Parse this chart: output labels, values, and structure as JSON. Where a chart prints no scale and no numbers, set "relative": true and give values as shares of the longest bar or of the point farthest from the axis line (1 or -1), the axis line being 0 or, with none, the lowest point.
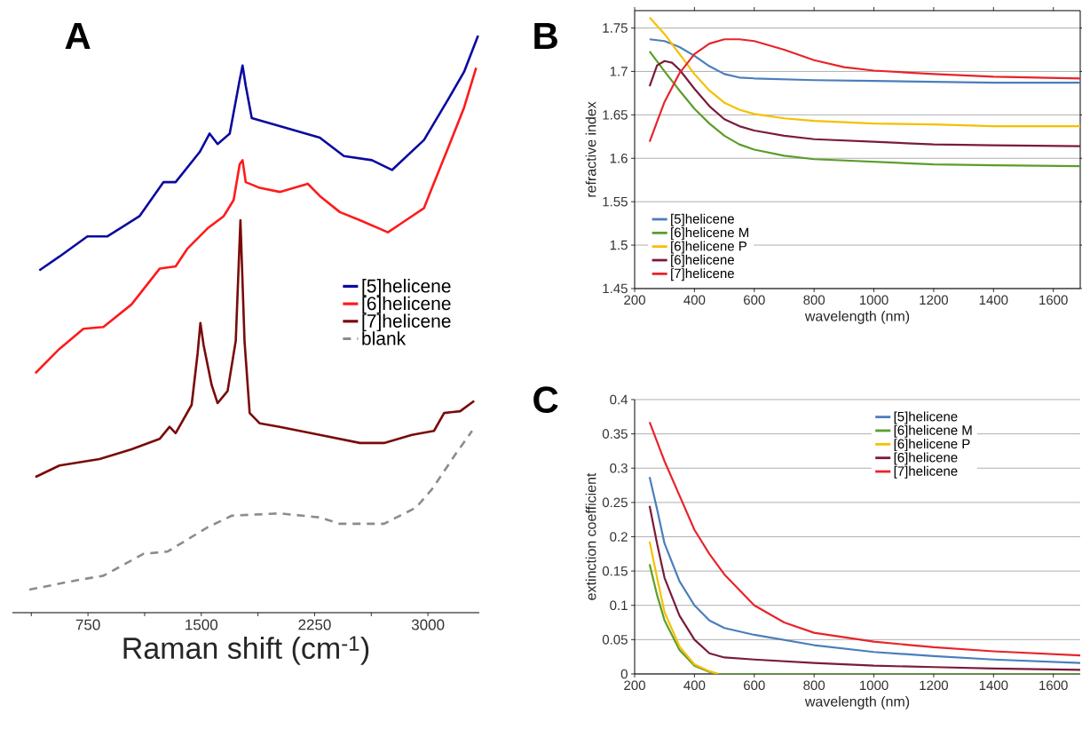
{
  "chart_data": [
    {
      "type": "line",
      "title": "A",
      "xlabel": "Raman shift (cm$^{-1}$)",
      "relative": true,
      "legend": "right",
      "xlim": [
        250,
        3340
      ],
      "xticks": [
        {
          "value": 375,
          "label": null
        },
        750,
        {
          "value": 1125,
          "label": null
        },
        1500,
        {
          "value": 1875,
          "label": null
        },
        2250,
        {
          "value": 2625,
          "label": null
        },
        3000
      ],
      "series": [
        {
          "name": "[5]helicene",
          "color": "#0a0aa0",
          "x": [
            428,
            561,
            746,
            879,
            1091,
            1250,
            1330,
            1489,
            1555,
            1608,
            1688,
            1754,
            1773,
            1794,
            1834,
            2019,
            2284,
            2444,
            2629,
            2762,
            2974,
            3133,
            3239,
            3332
          ],
          "values": [
            0.593,
            0.617,
            0.652,
            0.652,
            0.687,
            0.746,
            0.746,
            0.798,
            0.83,
            0.812,
            0.83,
            0.923,
            0.948,
            0.913,
            0.857,
            0.843,
            0.823,
            0.791,
            0.784,
            0.767,
            0.819,
            0.889,
            0.937,
            1.0
          ]
        },
        {
          "name": "[6]helicene",
          "color": "#ff1a1a",
          "x": [
            402,
            561,
            720,
            852,
            1038,
            1224,
            1330,
            1409,
            1542,
            1648,
            1714,
            1754,
            1773,
            1794,
            1887,
            2019,
            2205,
            2284,
            2417,
            2550,
            2735,
            2815,
            2974,
            3027,
            3133,
            3239,
            3319
          ],
          "values": [
            0.415,
            0.457,
            0.492,
            0.495,
            0.534,
            0.596,
            0.6,
            0.631,
            0.666,
            0.687,
            0.715,
            0.777,
            0.784,
            0.746,
            0.736,
            0.729,
            0.743,
            0.722,
            0.694,
            0.68,
            0.659,
            0.673,
            0.701,
            0.736,
            0.805,
            0.875,
            0.944
          ]
        },
        {
          "name": "[7]helicene",
          "color": "#7a0a0a",
          "x": [
            402,
            561,
            826,
            1038,
            1224,
            1290,
            1330,
            1436,
            1476,
            1494,
            1515,
            1568,
            1608,
            1674,
            1728,
            1759,
            1786,
            1820,
            1887,
            2019,
            2284,
            2550,
            2709,
            2894,
            3040,
            3107,
            3213,
            3306
          ],
          "values": [
            0.235,
            0.255,
            0.266,
            0.283,
            0.301,
            0.322,
            0.311,
            0.36,
            0.45,
            0.502,
            0.464,
            0.395,
            0.363,
            0.384,
            0.471,
            0.68,
            0.471,
            0.346,
            0.328,
            0.322,
            0.308,
            0.294,
            0.294,
            0.308,
            0.315,
            0.346,
            0.349,
            0.367
          ]
        },
        {
          "name": "blank",
          "color": "#8c8c8c",
          "line_style": "dashed",
          "x": [
            362,
            693,
            852,
            1118,
            1277,
            1542,
            1701,
            2019,
            2284,
            2417,
            2709,
            2921,
            3027,
            3186,
            3292
          ],
          "values": [
            0.04,
            0.057,
            0.064,
            0.102,
            0.106,
            0.148,
            0.168,
            0.172,
            0.165,
            0.154,
            0.154,
            0.182,
            0.214,
            0.276,
            0.315
          ]
        }
      ]
    },
    {
      "type": "line",
      "title": "B",
      "xlabel": "wavelength (nm)",
      "ylabel": "refractive index",
      "legend": "bottom left",
      "grid": "y",
      "xlim": [
        200,
        1690
      ],
      "ylim": [
        1.45,
        1.77
      ],
      "xticks": [
        200,
        400,
        600,
        800,
        1000,
        1200,
        1400,
        1600
      ],
      "yticks": [
        1.45,
        1.5,
        1.55,
        1.6,
        1.65,
        1.7,
        1.75
      ],
      "series": [
        {
          "name": "[5]helicene",
          "color": "#4a7ebb",
          "x": [
            250,
            300,
            350,
            400,
            450,
            500,
            550,
            600,
            800,
            1000,
            1200,
            1400,
            1690
          ],
          "values": [
            1.737,
            1.735,
            1.728,
            1.718,
            1.706,
            1.697,
            1.693,
            1.692,
            1.69,
            1.689,
            1.688,
            1.687,
            1.687
          ]
        },
        {
          "name": "[6]helicene M",
          "color": "#5a9e2a",
          "x": [
            250,
            300,
            350,
            400,
            450,
            500,
            550,
            600,
            700,
            800,
            1000,
            1200,
            1400,
            1690
          ],
          "values": [
            1.723,
            1.7,
            1.678,
            1.657,
            1.64,
            1.626,
            1.616,
            1.61,
            1.603,
            1.599,
            1.596,
            1.593,
            1.592,
            1.591
          ]
        },
        {
          "name": "[6]helicene P",
          "color": "#f5c000",
          "x": [
            250,
            300,
            350,
            400,
            450,
            500,
            550,
            600,
            700,
            800,
            1000,
            1200,
            1400,
            1690
          ],
          "values": [
            1.762,
            1.743,
            1.72,
            1.697,
            1.678,
            1.664,
            1.656,
            1.651,
            1.646,
            1.643,
            1.64,
            1.639,
            1.637,
            1.637
          ]
        },
        {
          "name": "[6]helicene",
          "color": "#7b1b3a",
          "x": [
            250,
            275,
            300,
            325,
            350,
            400,
            450,
            500,
            550,
            600,
            700,
            800,
            1000,
            1200,
            1400,
            1690
          ],
          "values": [
            1.683,
            1.707,
            1.712,
            1.71,
            1.702,
            1.68,
            1.66,
            1.645,
            1.637,
            1.632,
            1.626,
            1.622,
            1.619,
            1.616,
            1.615,
            1.614
          ]
        },
        {
          "name": "[7]helicene",
          "color": "#e8242b",
          "x": [
            250,
            300,
            350,
            400,
            450,
            500,
            550,
            600,
            700,
            800,
            900,
            1000,
            1200,
            1400,
            1690
          ],
          "values": [
            1.619,
            1.665,
            1.698,
            1.72,
            1.732,
            1.737,
            1.737,
            1.735,
            1.725,
            1.713,
            1.705,
            1.701,
            1.697,
            1.694,
            1.692
          ]
        }
      ]
    },
    {
      "type": "line",
      "title": "C",
      "xlabel": "wavelength (nm)",
      "ylabel": "extinction coefficient",
      "legend": "top",
      "grid": "y",
      "xlim": [
        200,
        1690
      ],
      "ylim": [
        0,
        0.4
      ],
      "xticks": [
        200,
        400,
        600,
        800,
        1000,
        1200,
        1400,
        1600
      ],
      "yticks": [
        0,
        0.05,
        0.1,
        0.15,
        0.2,
        0.25,
        0.3,
        0.35,
        0.4
      ],
      "series": [
        {
          "name": "[5]helicene",
          "color": "#4a7ebb",
          "x": [
            250,
            275,
            300,
            350,
            400,
            450,
            500,
            600,
            800,
            1000,
            1200,
            1400,
            1690
          ],
          "values": [
            0.287,
            0.24,
            0.19,
            0.135,
            0.1,
            0.078,
            0.067,
            0.057,
            0.042,
            0.032,
            0.026,
            0.021,
            0.016
          ]
        },
        {
          "name": "[6]helicene M",
          "color": "#5a9e2a",
          "x": [
            250,
            275,
            300,
            350,
            400,
            450,
            480,
            600,
            1000,
            1690
          ],
          "values": [
            0.16,
            0.115,
            0.078,
            0.035,
            0.012,
            0.003,
            0,
            0,
            0,
            0
          ]
        },
        {
          "name": "[6]helicene P",
          "color": "#f5c000",
          "x": [
            250,
            275,
            300,
            350,
            400,
            450,
            480
          ],
          "values": [
            0.193,
            0.14,
            0.09,
            0.04,
            0.014,
            0.004,
            0
          ]
        },
        {
          "name": "[6]helicene",
          "color": "#7b1b3a",
          "x": [
            250,
            275,
            300,
            350,
            400,
            450,
            500,
            600,
            800,
            1000,
            1200,
            1400,
            1690
          ],
          "values": [
            0.245,
            0.19,
            0.14,
            0.085,
            0.05,
            0.03,
            0.024,
            0.021,
            0.016,
            0.012,
            0.01,
            0.008,
            0.006
          ]
        },
        {
          "name": "[7]helicene",
          "color": "#e8242b",
          "x": [
            250,
            300,
            350,
            400,
            450,
            500,
            600,
            700,
            800,
            1000,
            1200,
            1400,
            1690
          ],
          "values": [
            0.367,
            0.31,
            0.26,
            0.21,
            0.175,
            0.145,
            0.1,
            0.075,
            0.06,
            0.047,
            0.039,
            0.033,
            0.027
          ]
        }
      ]
    }
  ]
}
